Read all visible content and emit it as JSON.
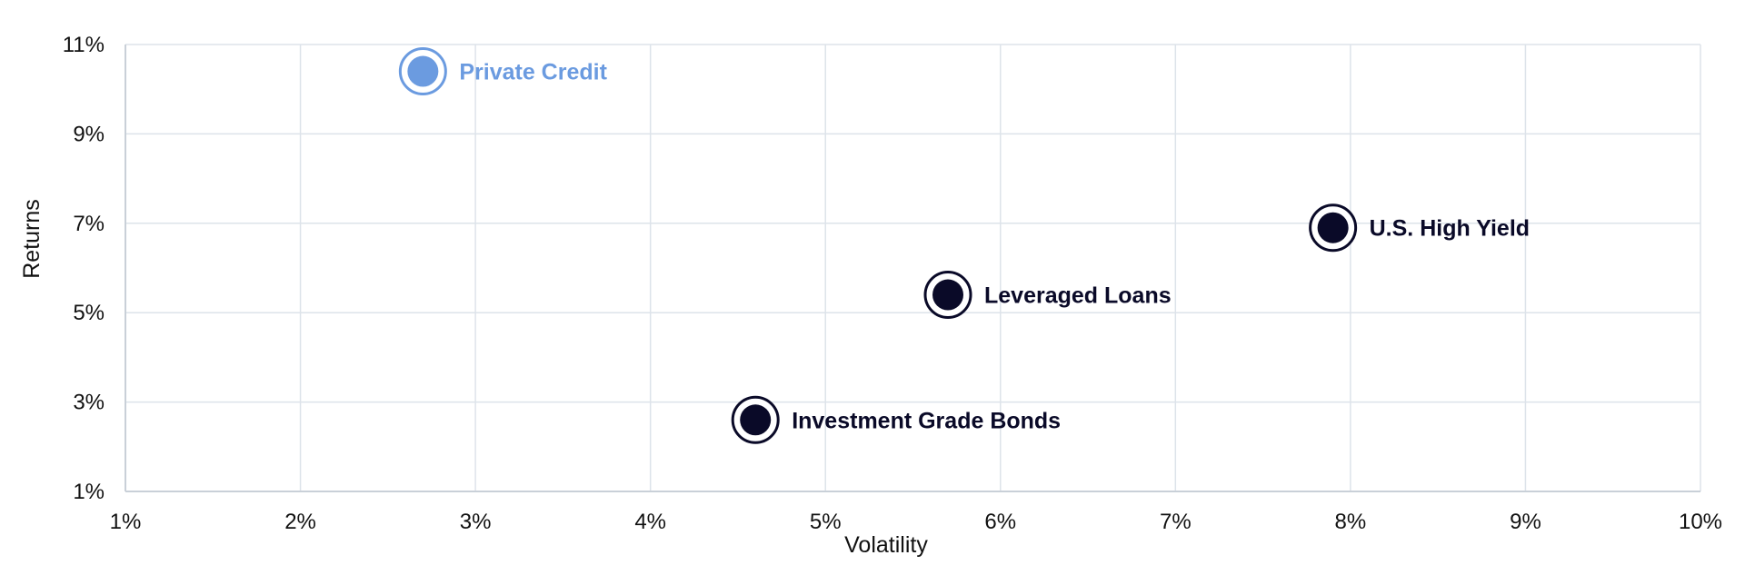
{
  "chart_data": {
    "type": "scatter",
    "title": "",
    "xlabel": "Volatility",
    "ylabel": "Returns",
    "xlim": [
      1,
      10
    ],
    "ylim": [
      1,
      11
    ],
    "x_ticks": [
      1,
      2,
      3,
      4,
      5,
      6,
      7,
      8,
      9,
      10
    ],
    "y_ticks": [
      1,
      3,
      5,
      7,
      9,
      11
    ],
    "x_tick_labels": [
      "1%",
      "2%",
      "3%",
      "4%",
      "5%",
      "6%",
      "7%",
      "8%",
      "9%",
      "10%"
    ],
    "y_tick_labels": [
      "1%",
      "3%",
      "5%",
      "7%",
      "9%",
      "11%"
    ],
    "unit": "%",
    "grid": true,
    "legend": "none",
    "points": [
      {
        "label": "Private Credit",
        "x": 2.7,
        "y": 10.4,
        "color": "#6b9be0"
      },
      {
        "label": "Investment Grade Bonds",
        "x": 4.6,
        "y": 2.6,
        "color": "#0a0a28"
      },
      {
        "label": "Leveraged Loans",
        "x": 5.7,
        "y": 5.4,
        "color": "#0a0a28"
      },
      {
        "label": "U.S. High Yield",
        "x": 7.9,
        "y": 6.9,
        "color": "#0a0a28"
      }
    ],
    "colors": {
      "grid": "#dde3ea",
      "axis": "#c9d0d8"
    }
  }
}
